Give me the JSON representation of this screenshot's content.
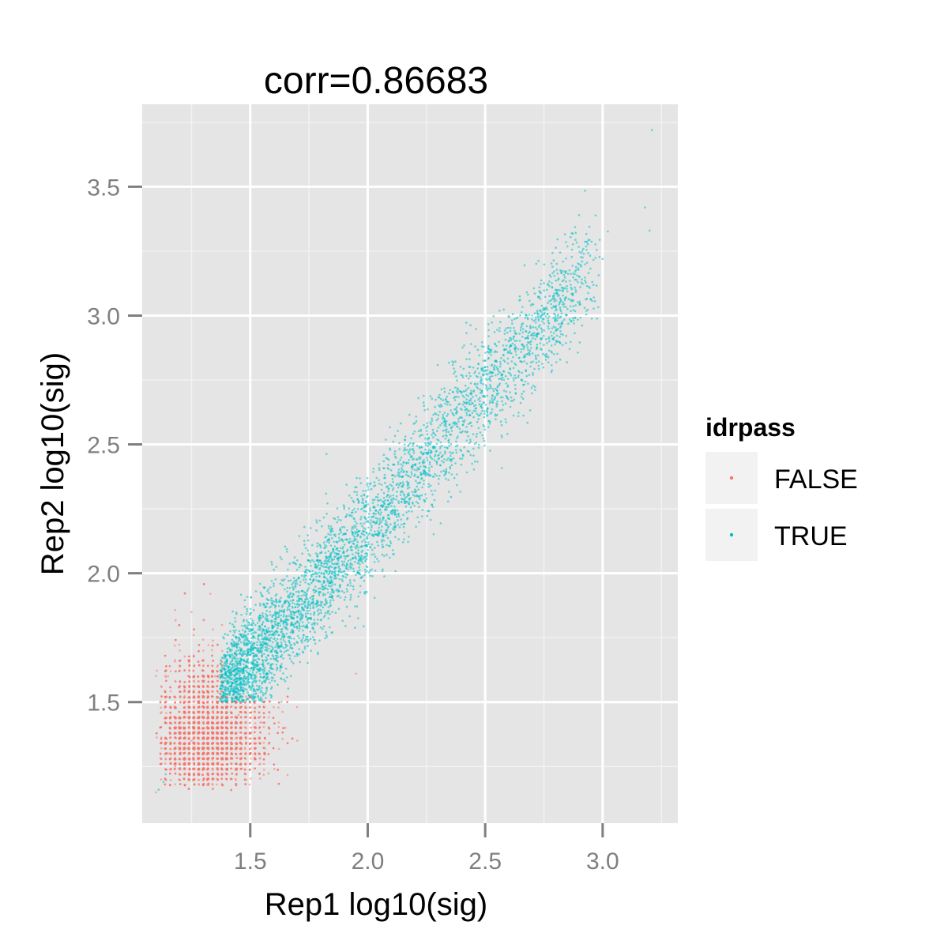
{
  "chart_data": {
    "type": "scatter",
    "title": "corr=0.86683",
    "xlabel": "Rep1 log10(sig)",
    "ylabel": "Rep2 log10(sig)",
    "xlim": [
      1.04,
      3.32
    ],
    "ylim": [
      1.03,
      3.82
    ],
    "x_ticks": [
      1.5,
      2.0,
      2.5,
      3.0
    ],
    "x_tick_labels": [
      "1.5",
      "2.0",
      "2.5",
      "3.0"
    ],
    "y_ticks": [
      1.5,
      2.0,
      2.5,
      3.0,
      3.5
    ],
    "y_tick_labels": [
      "1.5",
      "2.0",
      "2.5",
      "3.0",
      "3.5"
    ],
    "grid": true,
    "legend": {
      "title": "idrpass",
      "placement": "right",
      "entries": [
        "FALSE",
        "TRUE"
      ]
    },
    "correlation": 0.86683,
    "series": [
      {
        "name": "FALSE",
        "color": "#F8766D",
        "points": [
          [
            1.1,
            1.15
          ],
          [
            1.12,
            1.2
          ],
          [
            1.15,
            1.3
          ],
          [
            1.18,
            1.25
          ],
          [
            1.2,
            1.4
          ],
          [
            1.22,
            1.55
          ],
          [
            1.25,
            1.35
          ],
          [
            1.28,
            1.5
          ],
          [
            1.3,
            1.7
          ],
          [
            1.32,
            1.45
          ],
          [
            1.35,
            1.6
          ],
          [
            1.38,
            1.8
          ],
          [
            1.4,
            1.4
          ],
          [
            1.42,
            1.3
          ],
          [
            1.45,
            1.45
          ],
          [
            1.5,
            1.38
          ],
          [
            1.55,
            1.42
          ],
          [
            1.6,
            1.48
          ],
          [
            1.65,
            1.4
          ],
          [
            1.7,
            1.35
          ],
          [
            1.25,
            1.85
          ],
          [
            1.2,
            1.7
          ],
          [
            1.15,
            1.6
          ],
          [
            1.33,
            1.92
          ],
          [
            1.95,
            1.61
          ]
        ],
        "bulk_points": 5000
      },
      {
        "name": "TRUE",
        "color": "#00BFC4",
        "points": [
          [
            1.4,
            1.6
          ],
          [
            1.45,
            1.75
          ],
          [
            1.55,
            1.8
          ],
          [
            1.6,
            1.95
          ],
          [
            1.7,
            2.05
          ],
          [
            1.8,
            2.1
          ],
          [
            1.9,
            2.25
          ],
          [
            2.0,
            2.35
          ],
          [
            2.1,
            2.4
          ],
          [
            2.2,
            2.55
          ],
          [
            2.3,
            2.6
          ],
          [
            2.4,
            2.7
          ],
          [
            2.5,
            2.8
          ],
          [
            2.6,
            2.9
          ],
          [
            2.7,
            3.0
          ],
          [
            2.8,
            3.1
          ],
          [
            2.9,
            3.15
          ],
          [
            3.0,
            3.22
          ],
          [
            3.18,
            3.42
          ],
          [
            3.2,
            3.33
          ],
          [
            3.21,
            3.72
          ],
          [
            2.9,
            3.39
          ],
          [
            1.11,
            1.16
          ],
          [
            1.13,
            1.19
          ],
          [
            1.14,
            1.22
          ]
        ],
        "bulk_points": 4500
      }
    ]
  }
}
